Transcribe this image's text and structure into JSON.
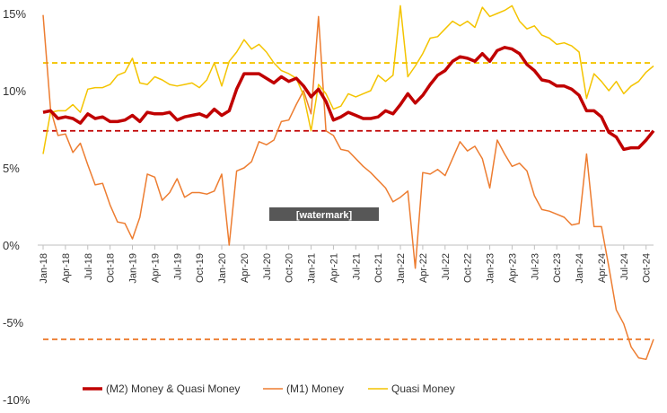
{
  "chart_data": {
    "type": "line",
    "title": "",
    "xlabel": "",
    "ylabel": "",
    "ylim": [
      -10,
      15
    ],
    "y_ticks": [
      15,
      10,
      5,
      0,
      -5,
      -10
    ],
    "y_tick_labels": [
      "15%",
      "10%",
      "5%",
      "0%",
      "-5%",
      "-10%"
    ],
    "x_start": "2018-01",
    "x_tick_labels": [
      "Jan-18",
      "Apr-18",
      "Jul-18",
      "Oct-18",
      "Jan-19",
      "Apr-19",
      "Jul-19",
      "Oct-19",
      "Jan-20",
      "Apr-20",
      "Jul-20",
      "Oct-20",
      "Jan-21",
      "Apr-21",
      "Jul-21",
      "Oct-21",
      "Jan-22",
      "Apr-22",
      "Jul-22",
      "Oct-22",
      "Jan-23",
      "Apr-23",
      "Jul-23",
      "Oct-23",
      "Jan-24",
      "Apr-24",
      "Jul-24",
      "Oct-24"
    ],
    "grid": false,
    "legend_position": "bottom",
    "watermark": "[watermark]",
    "series": [
      {
        "name": "(M2) Money & Quasi Money",
        "color": "#c00000",
        "style": "thick",
        "values": [
          8.6,
          8.7,
          8.2,
          8.3,
          8.2,
          7.9,
          8.5,
          8.2,
          8.3,
          8.0,
          8.0,
          8.1,
          8.4,
          8.0,
          8.6,
          8.5,
          8.5,
          8.6,
          8.1,
          8.3,
          8.4,
          8.5,
          8.3,
          8.8,
          8.4,
          8.7,
          10.1,
          11.1,
          11.1,
          11.1,
          10.8,
          10.5,
          10.9,
          10.6,
          10.8,
          10.3,
          9.6,
          10.1,
          9.3,
          8.1,
          8.3,
          8.6,
          8.4,
          8.2,
          8.2,
          8.3,
          8.7,
          8.5,
          9.1,
          9.8,
          9.2,
          9.7,
          10.4,
          11.0,
          11.3,
          11.9,
          12.2,
          12.1,
          11.9,
          12.4,
          11.9,
          12.6,
          12.8,
          12.7,
          12.4,
          11.7,
          11.3,
          10.7,
          10.6,
          10.3,
          10.3,
          10.1,
          9.7,
          8.7,
          8.7,
          8.3,
          7.3,
          7.0,
          6.2,
          6.3,
          6.3,
          6.8,
          7.4
        ]
      },
      {
        "name": "(M1)  Money",
        "color": "#ed7d31",
        "style": "thin",
        "values": [
          14.9,
          8.8,
          7.1,
          7.2,
          6.0,
          6.6,
          5.2,
          3.9,
          4.0,
          2.6,
          1.5,
          1.4,
          0.4,
          1.8,
          4.6,
          4.4,
          2.9,
          3.4,
          4.3,
          3.1,
          3.4,
          3.4,
          3.3,
          3.5,
          4.6,
          0.0,
          4.8,
          5.0,
          5.4,
          6.7,
          6.5,
          6.8,
          8.0,
          8.1,
          9.1,
          10.0,
          8.5,
          14.8,
          7.4,
          7.1,
          6.2,
          6.1,
          5.6,
          5.1,
          4.7,
          4.2,
          3.7,
          2.8,
          3.1,
          3.5,
          -1.5,
          4.7,
          4.6,
          4.9,
          4.5,
          5.6,
          6.7,
          6.1,
          6.4,
          5.6,
          3.7,
          6.8,
          5.9,
          5.1,
          5.3,
          4.8,
          3.2,
          2.3,
          2.2,
          2.0,
          1.8,
          1.3,
          1.4,
          5.9,
          1.2,
          1.2,
          -1.4,
          -4.2,
          -5.1,
          -6.6,
          -7.3,
          -7.4,
          -6.1
        ]
      },
      {
        "name": "Quasi Money",
        "color": "#f4c400",
        "style": "thin",
        "values": [
          5.9,
          8.6,
          8.7,
          8.7,
          9.1,
          8.6,
          10.1,
          10.2,
          10.2,
          10.4,
          11.0,
          11.2,
          12.1,
          10.5,
          10.4,
          10.9,
          10.7,
          10.4,
          10.3,
          10.4,
          10.5,
          10.2,
          10.7,
          11.8,
          10.3,
          11.9,
          12.5,
          13.3,
          12.7,
          13.0,
          12.5,
          11.8,
          11.3,
          11.1,
          10.8,
          9.7,
          7.4,
          10.4,
          9.8,
          8.8,
          9.0,
          9.8,
          9.6,
          9.8,
          10.0,
          11.0,
          10.6,
          11.0,
          15.5,
          10.9,
          11.6,
          12.4,
          13.4,
          13.5,
          14.0,
          14.5,
          14.2,
          14.5,
          14.1,
          15.4,
          14.8,
          15.0,
          15.2,
          15.5,
          14.5,
          14.0,
          14.2,
          13.6,
          13.4,
          13.0,
          13.1,
          12.9,
          12.5,
          9.5,
          11.1,
          10.6,
          10.0,
          10.6,
          9.8,
          10.3,
          10.6,
          11.2,
          11.6
        ]
      }
    ],
    "reference_lines": [
      {
        "value": 11.8,
        "color": "#f4c400"
      },
      {
        "value": 7.4,
        "color": "#c00000"
      },
      {
        "value": -6.1,
        "color": "#ed7d31"
      }
    ]
  }
}
